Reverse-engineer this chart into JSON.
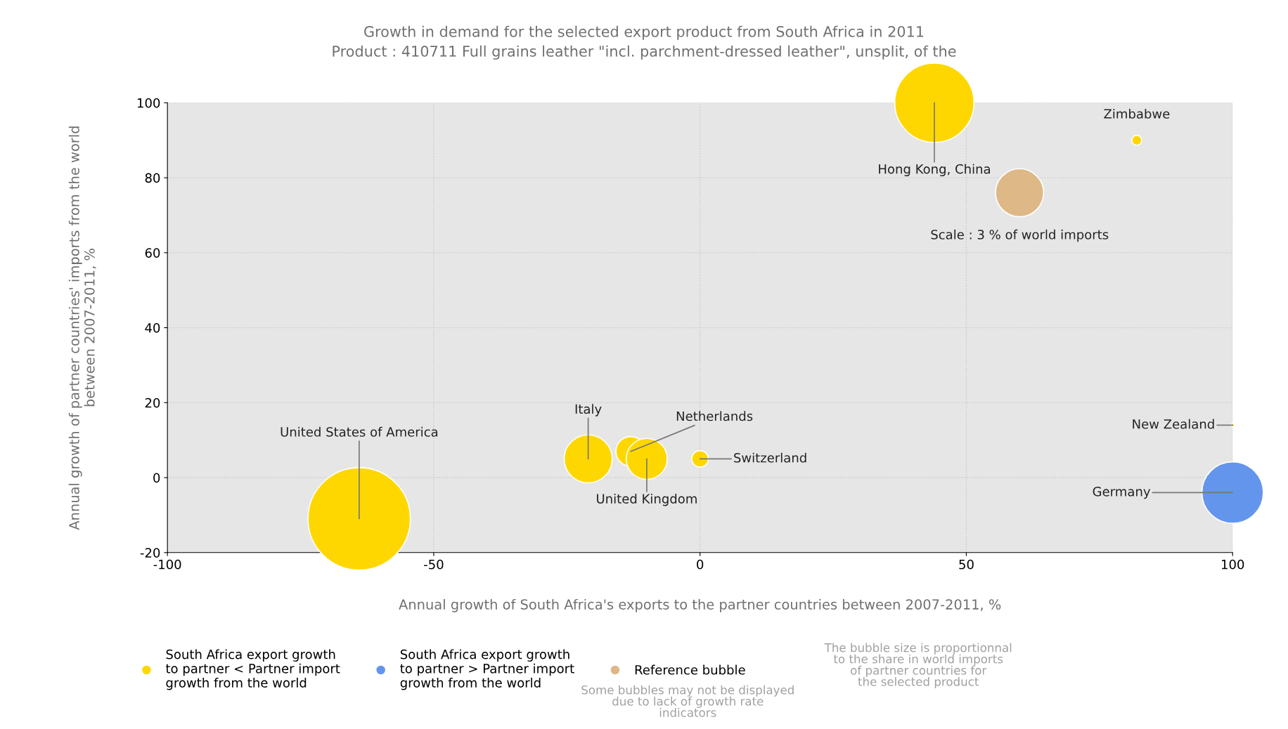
{
  "chart_data": {
    "type": "bubble",
    "title": "Growth in demand for the selected export product from South Africa in 2011",
    "subtitle": "Product : 410711 Full grains leather \"incl. parchment-dressed leather\", unsplit, of the",
    "xlabel": "Annual growth of South Africa's exports to the partner countries between 2007-2011, %",
    "ylabel": "Annual growth of partner countries' imports from the world\nbetween 2007-2011, %",
    "xlim": [
      -100,
      100
    ],
    "ylim": [
      -20,
      100
    ],
    "xticks": [
      -100,
      -50,
      0,
      50,
      100
    ],
    "yticks": [
      -20,
      0,
      20,
      40,
      60,
      80,
      100
    ],
    "grid": true,
    "legend": "bottom",
    "series": [
      {
        "name": "South Africa export growth\nto partner < Partner import\ngrowth from the world",
        "color": "#ffd700",
        "x": [
          -64,
          -21,
          -13,
          -10,
          0,
          44,
          82,
          100
        ],
        "values": [
          -11,
          5,
          7,
          5,
          5,
          100,
          90,
          14
        ],
        "sizes": [
          1,
          0.22,
          0.084,
          0.16,
          0.026,
          0.6,
          0.0094,
          0.001
        ]
      },
      {
        "name": "South Africa export growth\nto partner > Partner import\ngrowth from the world",
        "color": "#6495ed",
        "x": [
          100
        ],
        "values": [
          -4
        ],
        "sizes": [
          0.36
        ]
      },
      {
        "name": "Reference bubble",
        "color": "#deb887",
        "x": [
          60
        ],
        "values": [
          76
        ],
        "sizes": [
          0.22
        ]
      }
    ],
    "annotations": [
      {
        "text": "United States of America",
        "x": -64,
        "y": -11
      },
      {
        "text": "Italy",
        "x": -21,
        "y": 5
      },
      {
        "text": "Netherlands",
        "x": -13,
        "y": 7
      },
      {
        "text": "United Kingdom",
        "x": -10,
        "y": 5
      },
      {
        "text": "Switzerland",
        "x": 0,
        "y": 5
      },
      {
        "text": "Hong Kong, China",
        "x": 44,
        "y": 100
      },
      {
        "text": "Zimbabwe",
        "x": 82,
        "y": 90
      },
      {
        "text": "New Zealand",
        "x": 100,
        "y": 14
      },
      {
        "text": "Germany",
        "x": 100,
        "y": -4
      },
      {
        "text": "Scale : 3 % of world imports",
        "x": 60,
        "y": 76
      },
      "Some bubbles may not be displayed\ndue to lack of growth rate\nindicators",
      "The bubble size is proportionnal\nto the share in world imports\nof partner countries for\nthe selected product"
    ]
  }
}
